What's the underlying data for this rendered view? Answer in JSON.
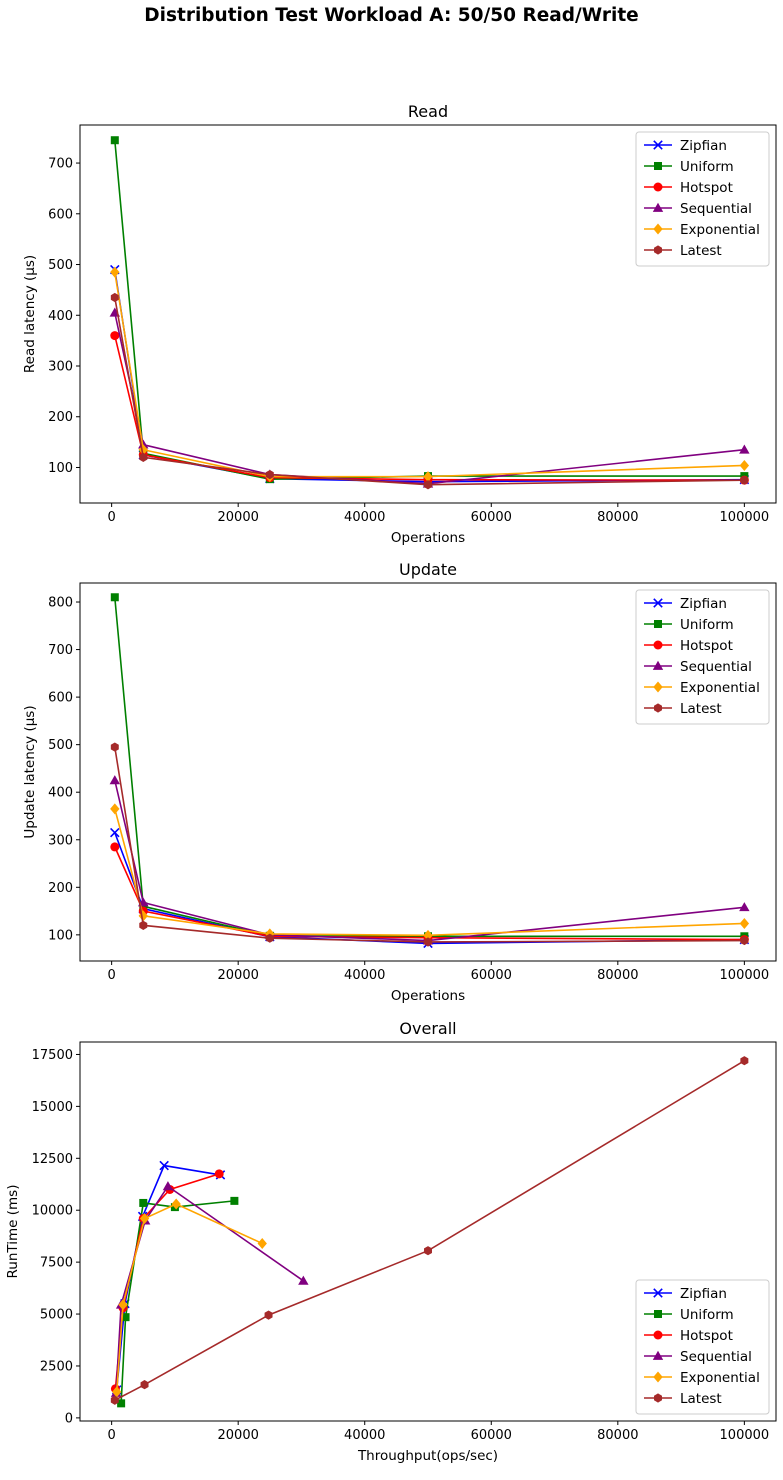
{
  "figure_title": "Distribution Test Workload A: 50/50 Read/Write",
  "colors": {
    "Zipfian": "#0000ff",
    "Uniform": "#008000",
    "Hotspot": "#ff0000",
    "Sequential": "#800080",
    "Exponential": "#ffa500",
    "Latest": "#a52a2a"
  },
  "markers": {
    "Zipfian": "x",
    "Uniform": "square",
    "Hotspot": "circle",
    "Sequential": "triangle",
    "Exponential": "diamond",
    "Latest": "hexagon"
  },
  "chart_data": [
    {
      "type": "line",
      "title": "Read",
      "xlabel": "Operations",
      "ylabel": "Read latency (µs)",
      "xlim": [
        -5000,
        105000
      ],
      "ylim": [
        30,
        775
      ],
      "xticks": [
        0,
        20000,
        40000,
        60000,
        80000,
        100000
      ],
      "yticks": [
        100,
        200,
        300,
        400,
        500,
        600,
        700
      ],
      "legend": "top-right",
      "x": [
        500,
        5000,
        25000,
        50000,
        100000
      ],
      "series": [
        {
          "name": "Zipfian",
          "values": [
            490,
            125,
            78,
            72,
            76
          ]
        },
        {
          "name": "Uniform",
          "values": [
            745,
            128,
            77,
            83,
            83
          ]
        },
        {
          "name": "Hotspot",
          "values": [
            360,
            125,
            80,
            76,
            75
          ]
        },
        {
          "name": "Sequential",
          "values": [
            405,
            145,
            86,
            68,
            135
          ]
        },
        {
          "name": "Exponential",
          "values": [
            485,
            135,
            82,
            82,
            104
          ]
        },
        {
          "name": "Latest",
          "values": [
            435,
            120,
            86,
            66,
            75
          ]
        }
      ]
    },
    {
      "type": "line",
      "title": "Update",
      "xlabel": "Operations",
      "ylabel": "Update latency (µs)",
      "xlim": [
        -5000,
        105000
      ],
      "ylim": [
        45,
        840
      ],
      "xticks": [
        0,
        20000,
        40000,
        60000,
        80000,
        100000
      ],
      "yticks": [
        100,
        200,
        300,
        400,
        500,
        600,
        700,
        800
      ],
      "legend": "top-right",
      "x": [
        500,
        5000,
        25000,
        50000,
        100000
      ],
      "series": [
        {
          "name": "Zipfian",
          "values": [
            315,
            155,
            96,
            82,
            90
          ]
        },
        {
          "name": "Uniform",
          "values": [
            810,
            160,
            98,
            97,
            97
          ]
        },
        {
          "name": "Hotspot",
          "values": [
            285,
            150,
            97,
            94,
            90
          ]
        },
        {
          "name": "Sequential",
          "values": [
            425,
            168,
            100,
            88,
            158
          ]
        },
        {
          "name": "Exponential",
          "values": [
            365,
            140,
            102,
            99,
            124
          ]
        },
        {
          "name": "Latest",
          "values": [
            495,
            120,
            93,
            85,
            88
          ]
        }
      ]
    },
    {
      "type": "line",
      "title": "Overall",
      "xlabel": "Throughput(ops/sec)",
      "ylabel": "RunTime (ms)",
      "xlim": [
        -5000,
        105000
      ],
      "ylim": [
        -150,
        18100
      ],
      "xticks": [
        0,
        20000,
        40000,
        60000,
        80000,
        100000
      ],
      "yticks": [
        0,
        2500,
        5000,
        7500,
        10000,
        12500,
        15000,
        17500
      ],
      "legend": "bottom-right",
      "series": [
        {
          "name": "Zipfian",
          "x": [
            800,
            2100,
            4900,
            8300,
            17200
          ],
          "values": [
            1350,
            5500,
            9700,
            12150,
            11700
          ]
        },
        {
          "name": "Uniform",
          "x": [
            1500,
            2200,
            5000,
            10000,
            19400
          ],
          "values": [
            700,
            4850,
            10350,
            10150,
            10450
          ]
        },
        {
          "name": "Hotspot",
          "x": [
            600,
            1800,
            5000,
            9200,
            17000
          ],
          "values": [
            1400,
            5300,
            9600,
            11000,
            11750
          ]
        },
        {
          "name": "Sequential",
          "x": [
            700,
            1500,
            5300,
            8900,
            30300
          ],
          "values": [
            1200,
            5450,
            9500,
            11150,
            6600
          ]
        },
        {
          "name": "Exponential",
          "x": [
            800,
            1800,
            5200,
            10200,
            23800
          ],
          "values": [
            1250,
            5450,
            9600,
            10300,
            8400
          ]
        },
        {
          "name": "Latest",
          "x": [
            500,
            5200,
            24800,
            50000,
            100000
          ],
          "values": [
            850,
            1600,
            4950,
            8050,
            17200
          ]
        }
      ]
    }
  ]
}
